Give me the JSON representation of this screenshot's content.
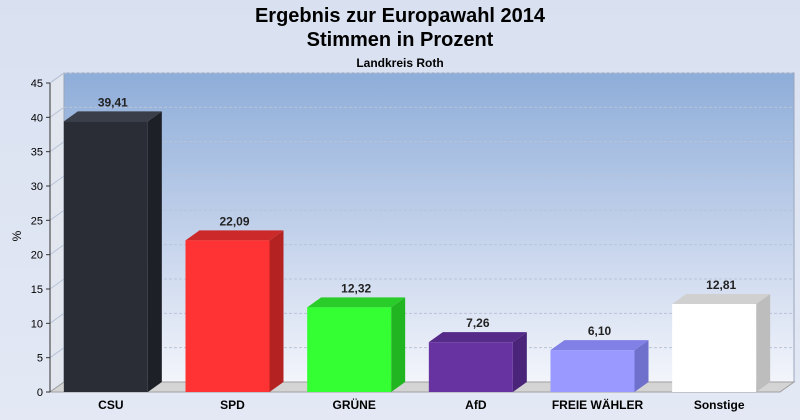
{
  "chart_data": {
    "type": "bar",
    "title_line1": "Ergebnis zur Europawahl 2014",
    "title_line2": "Stimmen in Prozent",
    "subtitle": "Landkreis Roth",
    "ylabel": "%",
    "ylim": [
      0,
      45
    ],
    "yticks": [
      0,
      5,
      10,
      15,
      20,
      25,
      30,
      35,
      40,
      45
    ],
    "categories": [
      "CSU",
      "SPD",
      "GRÜNE",
      "AfD",
      "FREIE WÄHLER",
      "Sonstige"
    ],
    "values": [
      39.41,
      22.09,
      12.32,
      7.26,
      6.1,
      12.81
    ],
    "value_labels": [
      "39,41",
      "22,09",
      "12,32",
      "7,26",
      "6,10",
      "12,81"
    ],
    "colors": [
      "#2a2d36",
      "#ff3333",
      "#33ff33",
      "#6633a0",
      "#9999ff",
      "#ffffff"
    ],
    "side_colors": [
      "#1e2028",
      "#b52222",
      "#22b522",
      "#4a2478",
      "#6f6fcc",
      "#bdbdbd"
    ],
    "top_colors": [
      "#3a3e48",
      "#cc2a2a",
      "#2acc2a",
      "#552a88",
      "#8080e6",
      "#d0d0d0"
    ],
    "grid": true,
    "legend": "none"
  }
}
